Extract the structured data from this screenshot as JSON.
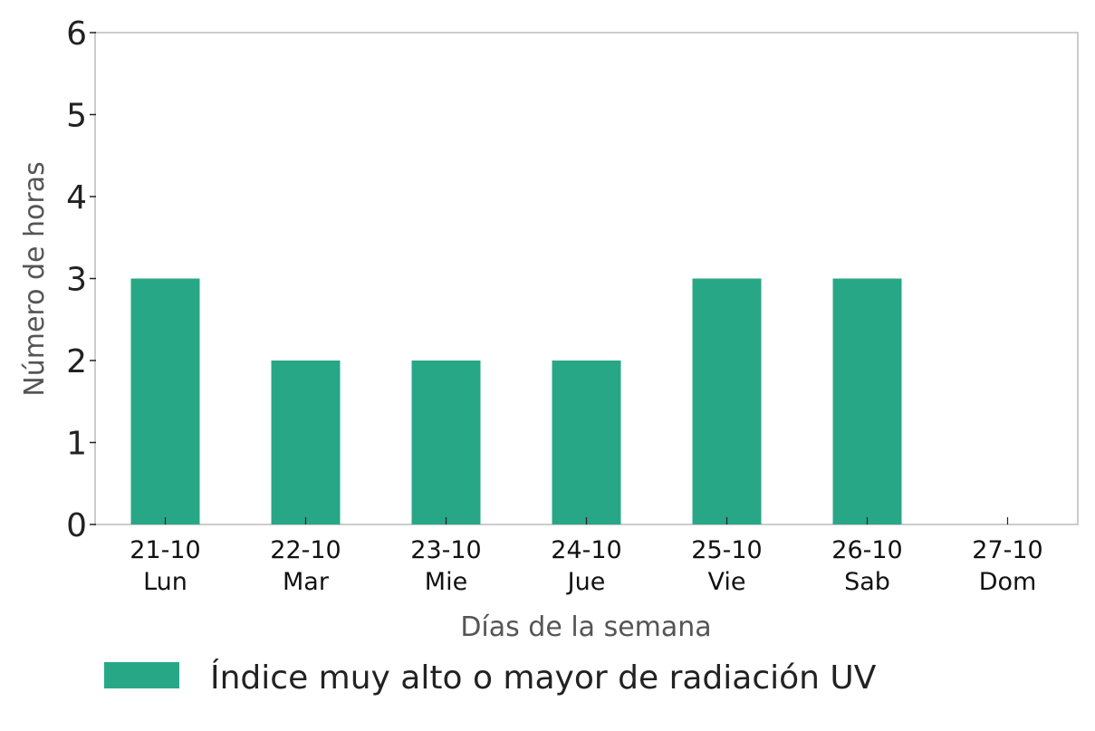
{
  "chart_data": {
    "type": "bar",
    "categories": [
      [
        "21-10",
        "Lun"
      ],
      [
        "22-10",
        "Mar"
      ],
      [
        "23-10",
        "Mie"
      ],
      [
        "24-10",
        "Jue"
      ],
      [
        "25-10",
        "Vie"
      ],
      [
        "26-10",
        "Sab"
      ],
      [
        "27-10",
        "Dom"
      ]
    ],
    "series": [
      {
        "name": "Índice muy alto o mayor de radiación UV",
        "values": [
          3,
          2,
          2,
          2,
          3,
          3,
          0
        ],
        "color": "#28a786"
      }
    ],
    "xlabel": "Días de la semana",
    "ylabel": "Número de horas",
    "ylim": [
      0,
      6
    ],
    "yticks": [
      0,
      1,
      2,
      3,
      4,
      5,
      6
    ],
    "grid": false,
    "legend_position": "bottom-left",
    "frame_color": "#cccccc",
    "tick_color": "#222222"
  }
}
